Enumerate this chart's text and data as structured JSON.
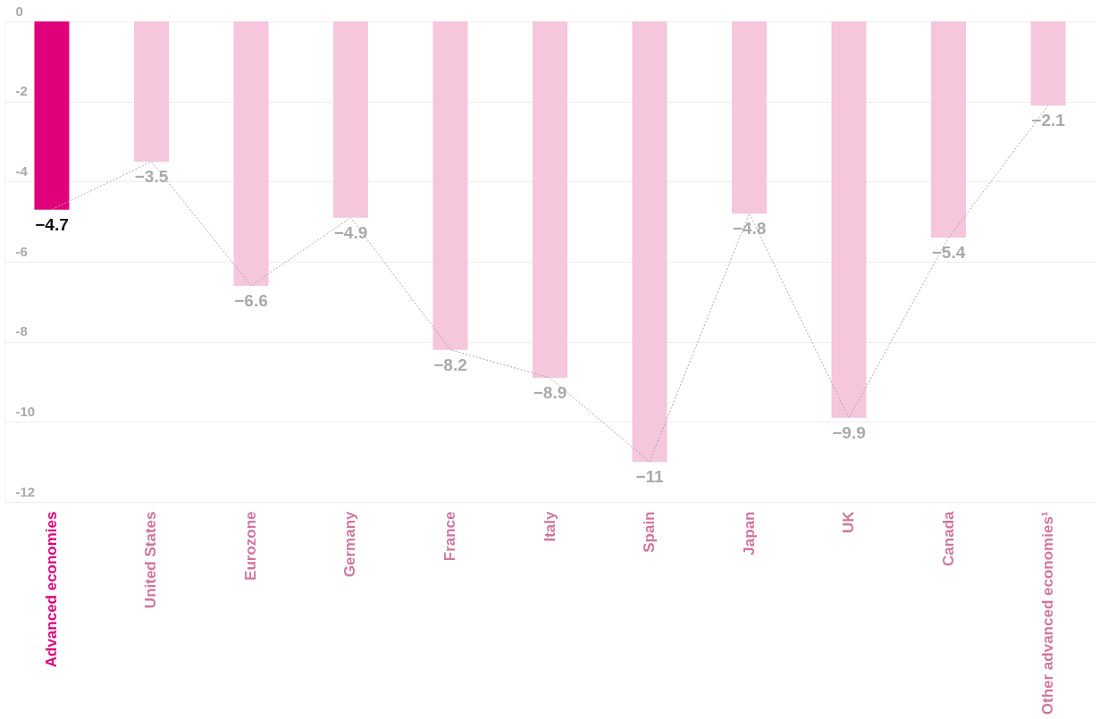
{
  "chart_data": {
    "type": "bar",
    "categories": [
      "Advanced economies",
      "United States",
      "Eurozone",
      "Germany",
      "France",
      "Italy",
      "Spain",
      "Japan",
      "UK",
      "Canada",
      "Other advanced economies¹"
    ],
    "series": [
      {
        "colors": [
          "#e0007a",
          "#f5c6dc",
          "#f5c6dc",
          "#f5c6dc",
          "#f5c6dc",
          "#f5c6dc",
          "#f5c6dc",
          "#f5c6dc",
          "#f5c6dc",
          "#f5c6dc",
          "#f5c6dc"
        ],
        "values": [
          -4.7,
          -3.5,
          -6.6,
          -4.9,
          -8.2,
          -8.9,
          -11,
          -4.8,
          -9.9,
          -5.4,
          -2.1
        ],
        "value_labels": [
          "−4.7",
          "−3.5",
          "−6.6",
          "−4.9",
          "−8.2",
          "−8.9",
          "−11",
          "−4.8",
          "−9.9",
          "−5.4",
          "−2.1"
        ]
      },
      {
        "type": "line",
        "color": "#aaaaaa",
        "line_style": "dotted",
        "values": [
          -4.7,
          -3.5,
          -6.6,
          -4.9,
          -8.2,
          -8.9,
          -11,
          -4.8,
          -9.9,
          -5.4,
          -2.1
        ]
      }
    ],
    "ylim": [
      -12,
      0
    ],
    "yticks": [
      0,
      -2,
      -4,
      -6,
      -8,
      -10,
      -12
    ],
    "grid": "y",
    "marker": "none"
  }
}
